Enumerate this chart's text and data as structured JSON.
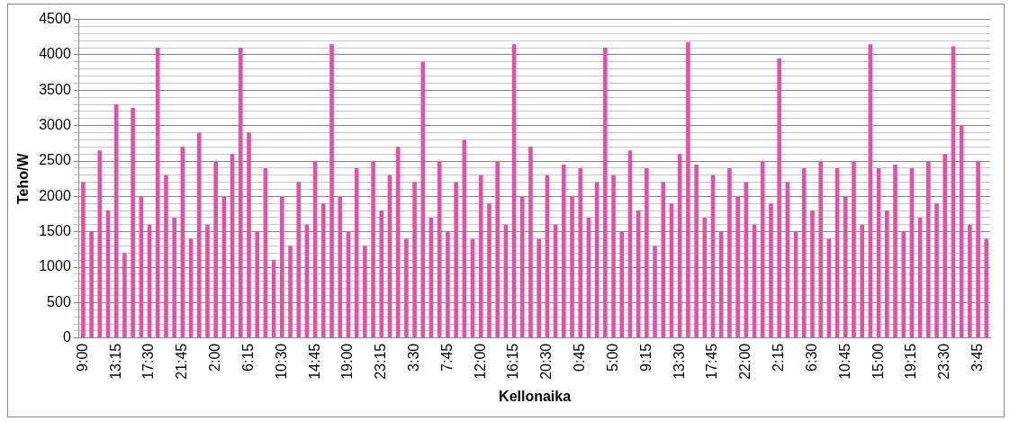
{
  "chart_data": {
    "type": "bar",
    "xlabel": "Kellonaika",
    "ylabel": "Teho/W",
    "color": "#e64fa5",
    "categories": [
      "9:00",
      null,
      null,
      null,
      "13:15",
      null,
      null,
      null,
      "17:30",
      null,
      null,
      null,
      "21:45",
      null,
      null,
      null,
      "2:00",
      null,
      null,
      null,
      "6:15",
      null,
      null,
      null,
      "10:30",
      null,
      null,
      null,
      "14:45",
      null,
      null,
      null,
      "19:00",
      null,
      null,
      null,
      "23:15",
      null,
      null,
      null,
      "3:30",
      null,
      null,
      null,
      "7:45",
      null,
      null,
      null,
      "12:00",
      null,
      null,
      null,
      "16:15",
      null,
      null,
      null,
      "20:30",
      null,
      null,
      null,
      "0:45",
      null,
      null,
      null,
      "5:00",
      null,
      null,
      null,
      "9:15",
      null,
      null,
      null,
      "13:30",
      null,
      null,
      null,
      "17:45",
      null,
      null,
      null,
      "22:00",
      null,
      null,
      null,
      "2:15",
      null,
      null,
      null,
      "6:30",
      null,
      null,
      null,
      "10:45",
      null,
      null,
      null,
      "15:00",
      null,
      null,
      null,
      "19:15",
      null,
      null,
      null,
      "23:30",
      null,
      null,
      null,
      "3:45",
      null
    ],
    "values": [
      2200,
      1500,
      2650,
      1800,
      3300,
      1200,
      3250,
      2000,
      1600,
      4100,
      2300,
      1700,
      2700,
      1400,
      2900,
      1600,
      2500,
      2000,
      2600,
      4100,
      2900,
      1500,
      2400,
      1100,
      2000,
      1300,
      2200,
      1600,
      2500,
      1900,
      4150,
      2000,
      1500,
      2400,
      1300,
      2500,
      1800,
      2300,
      2700,
      1400,
      2200,
      3900,
      1700,
      2500,
      1500,
      2200,
      2800,
      1400,
      2300,
      1900,
      2500,
      1600,
      4150,
      2000,
      2700,
      1400,
      2300,
      1600,
      2450,
      2000,
      2400,
      1700,
      2200,
      4100,
      2300,
      1500,
      2650,
      1800,
      2400,
      1300,
      2200,
      1900,
      2600,
      4180,
      2450,
      1700,
      2300,
      1500,
      2400,
      2000,
      2200,
      1600,
      2500,
      1900,
      3950,
      2200,
      1500,
      2400,
      1800,
      2500,
      1400,
      2400,
      2000,
      2500,
      1600,
      4150,
      2400,
      1800,
      2450,
      1500,
      2400,
      1700,
      2500,
      1900,
      2600,
      4120,
      3000,
      1600,
      2500,
      1400
    ],
    "ylim": [
      0,
      4500
    ],
    "yticks": [
      0,
      {
        "value": 100,
        "label": null
      },
      {
        "value": 200,
        "label": null
      },
      {
        "value": 300,
        "label": null
      },
      {
        "value": 400,
        "label": null
      },
      500,
      {
        "value": 600,
        "label": null
      },
      {
        "value": 700,
        "label": null
      },
      {
        "value": 800,
        "label": null
      },
      {
        "value": 900,
        "label": null
      },
      1000,
      {
        "value": 1100,
        "label": null
      },
      {
        "value": 1200,
        "label": null
      },
      {
        "value": 1300,
        "label": null
      },
      {
        "value": 1400,
        "label": null
      },
      1500,
      {
        "value": 1600,
        "label": null
      },
      {
        "value": 1700,
        "label": null
      },
      {
        "value": 1800,
        "label": null
      },
      {
        "value": 1900,
        "label": null
      },
      2000,
      {
        "value": 2100,
        "label": null
      },
      {
        "value": 2200,
        "label": null
      },
      {
        "value": 2300,
        "label": null
      },
      {
        "value": 2400,
        "label": null
      },
      2500,
      {
        "value": 2600,
        "label": null
      },
      {
        "value": 2700,
        "label": null
      },
      {
        "value": 2800,
        "label": null
      },
      {
        "value": 2900,
        "label": null
      },
      3000,
      {
        "value": 3100,
        "label": null
      },
      {
        "value": 3200,
        "label": null
      },
      {
        "value": 3300,
        "label": null
      },
      {
        "value": 3400,
        "label": null
      },
      3500,
      {
        "value": 3600,
        "label": null
      },
      {
        "value": 3700,
        "label": null
      },
      {
        "value": 3800,
        "label": null
      },
      {
        "value": 3900,
        "label": null
      },
      4000,
      {
        "value": 4100,
        "label": null
      },
      {
        "value": 4200,
        "label": null
      },
      {
        "value": 4300,
        "label": null
      },
      {
        "value": 4400,
        "label": null
      },
      4500
    ],
    "grid": "y",
    "legend": false
  }
}
